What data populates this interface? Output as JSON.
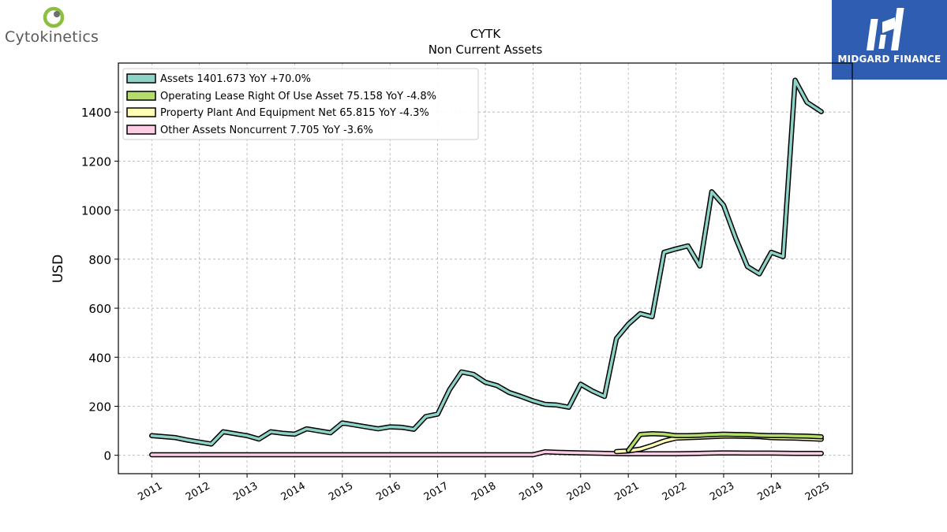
{
  "header": {
    "company_logo_text": "Cytokinetics",
    "brand_name": "MIDGARD FINANCE"
  },
  "colors": {
    "assets": "#8dd3c7",
    "operating_lease": "#b3de69",
    "ppe": "#ffffb3",
    "other": "#fccde5",
    "outline": "#000000",
    "grid": "#b0b0b0",
    "brand_bg": "#2f5db1",
    "logo_green": "#8cbf3f",
    "logo_gray": "#6d6e71"
  },
  "chart_data": {
    "type": "line",
    "title": "CYTK",
    "subtitle": "Non Current  Assets",
    "xlabel": "",
    "ylabel": "USD",
    "ylim": [
      -75,
      1600
    ],
    "xlim": [
      2010.3,
      2025.7
    ],
    "yticks": [
      0,
      200,
      400,
      600,
      800,
      1000,
      1200,
      1400
    ],
    "xticks": [
      2011,
      2012,
      2013,
      2014,
      2015,
      2016,
      2017,
      2018,
      2019,
      2020,
      2021,
      2022,
      2023,
      2024,
      2025
    ],
    "xtick_labels": [
      "2011",
      "2012",
      "2013",
      "2014",
      "2015",
      "2016",
      "2017",
      "2018",
      "2019",
      "2020",
      "2021",
      "2022",
      "2023",
      "2024",
      "2025"
    ],
    "grid": true,
    "legend_position": "top-left",
    "series": [
      {
        "name": "Assets  1401.673 YoY +70.0%",
        "color_key": "assets",
        "x": [
          2011.0,
          2011.25,
          2011.5,
          2011.75,
          2012.0,
          2012.25,
          2012.5,
          2012.75,
          2013.0,
          2013.25,
          2013.5,
          2013.75,
          2014.0,
          2014.25,
          2014.5,
          2014.75,
          2015.0,
          2015.25,
          2015.5,
          2015.75,
          2016.0,
          2016.25,
          2016.5,
          2016.75,
          2017.0,
          2017.25,
          2017.5,
          2017.75,
          2018.0,
          2018.25,
          2018.5,
          2018.75,
          2019.0,
          2019.25,
          2019.5,
          2019.75,
          2020.0,
          2020.25,
          2020.5,
          2020.75,
          2021.0,
          2021.25,
          2021.5,
          2021.75,
          2022.0,
          2022.25,
          2022.5,
          2022.75,
          2023.0,
          2023.25,
          2023.5,
          2023.75,
          2024.0,
          2024.25,
          2024.5,
          2024.75,
          2025.05
        ],
        "values": [
          80,
          76,
          72,
          62,
          54,
          46,
          96,
          88,
          80,
          66,
          96,
          90,
          86,
          108,
          100,
          92,
          132,
          124,
          116,
          108,
          116,
          114,
          106,
          158,
          168,
          268,
          340,
          330,
          298,
          284,
          256,
          240,
          222,
          208,
          205,
          196,
          290,
          262,
          240,
          476,
          535,
          578,
          565,
          828,
          842,
          854,
          772,
          1075,
          1020,
          888,
          770,
          740,
          828,
          810,
          1530,
          1440,
          1401.673
        ]
      },
      {
        "name": "Operating Lease Right Of Use Asset  75.158 YoY -4.8%",
        "color_key": "operating_lease",
        "x": [
          2021.0,
          2021.25,
          2021.5,
          2021.75,
          2022.0,
          2022.25,
          2022.5,
          2022.75,
          2023.0,
          2023.25,
          2023.5,
          2023.75,
          2024.0,
          2024.25,
          2024.5,
          2024.75,
          2025.05
        ],
        "values": [
          20,
          85,
          88,
          86,
          80,
          80,
          82,
          84,
          86,
          85,
          84,
          82,
          80,
          80,
          79,
          78,
          75.158
        ]
      },
      {
        "name": "Property Plant And Equipment Net  65.815 YoY -4.3%",
        "color_key": "ppe",
        "x": [
          2020.75,
          2021.0,
          2021.25,
          2021.5,
          2021.75,
          2022.0,
          2022.25,
          2022.5,
          2022.75,
          2023.0,
          2023.25,
          2023.5,
          2023.75,
          2024.0,
          2024.25,
          2024.5,
          2024.75,
          2025.05
        ],
        "values": [
          15,
          18,
          25,
          40,
          58,
          70,
          72,
          74,
          76,
          78,
          78,
          77,
          76,
          72,
          71,
          70,
          68,
          65.815
        ]
      },
      {
        "name": "Other Assets Noncurrent  7.705 YoY -3.6%",
        "color_key": "other",
        "x": [
          2011.0,
          2012.0,
          2013.0,
          2014.0,
          2015.0,
          2016.0,
          2017.0,
          2018.0,
          2019.0,
          2019.25,
          2019.5,
          2020.0,
          2020.5,
          2021.0,
          2021.5,
          2022.0,
          2022.5,
          2023.0,
          2023.5,
          2024.0,
          2024.5,
          2025.05
        ],
        "values": [
          2,
          2,
          2,
          2,
          2,
          2,
          2,
          2,
          2,
          14,
          12,
          10,
          8,
          6,
          6,
          6,
          8,
          10,
          9,
          9,
          8,
          7.705
        ]
      }
    ]
  }
}
